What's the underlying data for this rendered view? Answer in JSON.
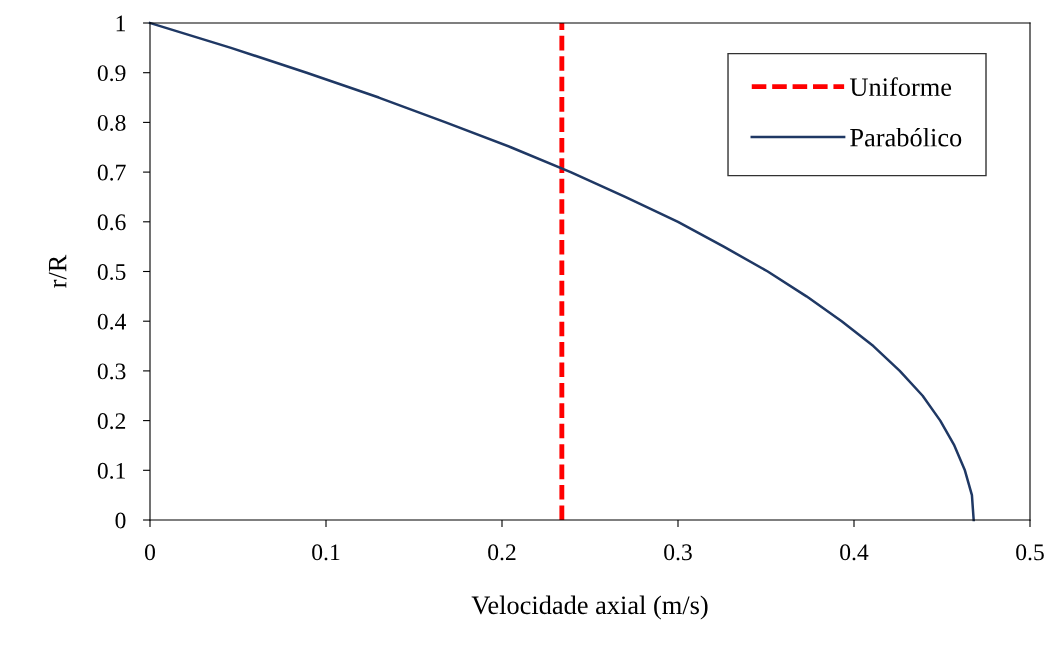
{
  "chart_data": {
    "type": "line",
    "xlabel": "Velocidade axial (m/s)",
    "ylabel": "r/R",
    "xlim": [
      0,
      0.5
    ],
    "xticks": [
      0,
      0.1,
      0.2,
      0.3,
      0.4,
      0.5
    ],
    "ylim": [
      0,
      1
    ],
    "yticks": [
      0,
      0.1,
      0.2,
      0.3,
      0.4,
      0.5,
      0.6,
      0.7,
      0.8,
      0.9,
      1
    ],
    "grid": false,
    "legend": "top right",
    "marker": "none",
    "series": [
      {
        "name": "Uniforme",
        "color": "#ff0000",
        "line_style": "dashed",
        "x": [
          0.234,
          0.234
        ],
        "values": [
          0,
          1
        ]
      },
      {
        "name": "Parabólico",
        "color": "#1f3864",
        "line_style": "solid",
        "x": [
          0.468,
          0.467,
          0.463,
          0.457,
          0.449,
          0.439,
          0.426,
          0.411,
          0.393,
          0.373,
          0.351,
          0.326,
          0.3,
          0.27,
          0.239,
          0.205,
          0.168,
          0.13,
          0.089,
          0.046,
          0
        ],
        "values": [
          0,
          0.05,
          0.1,
          0.15,
          0.2,
          0.25,
          0.3,
          0.35,
          0.4,
          0.45,
          0.5,
          0.55,
          0.6,
          0.65,
          0.7,
          0.75,
          0.8,
          0.85,
          0.9,
          0.95,
          1
        ]
      }
    ]
  }
}
